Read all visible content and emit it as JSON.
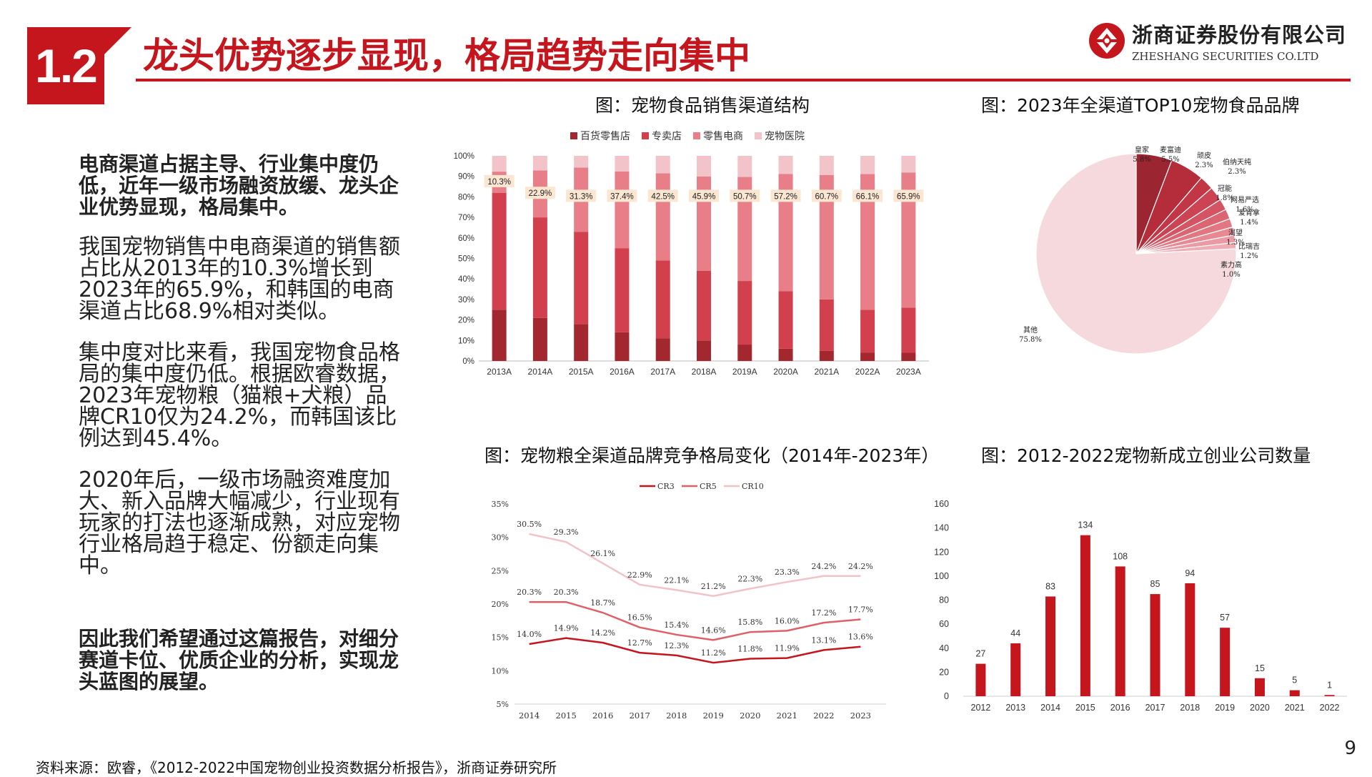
{
  "header": {
    "section": "1.2",
    "title": "龙头优势逐步显现，格局趋势走向集中",
    "brand_cn": "浙商证券股份有限公司",
    "brand_en": "ZHESHANG SECURITIES CO.LTD",
    "brand_color": "#c5161d"
  },
  "left": {
    "lead": "电商渠道占据主导、行业集中度仍低，近年一级市场融资放缓、龙头企业优势显现，格局集中。",
    "p1": "我国宠物销售中电商渠道的销售额占比从2013年的10.3%增长到2023年的65.9%，和韩国的电商渠道占比68.9%相对类似。",
    "p2": "集中度对比来看，我国宠物食品格局的集中度仍低。根据欧睿数据，2023年宠物粮（猫粮+犬粮）品牌CR10仅为24.2%，而韩国该比例达到45.4%。",
    "p3": "2020年后，一级市场融资难度加大、新入品牌大幅减少，行业现有玩家的打法也逐渐成熟，对应宠物行业格局趋于稳定、份额走向集中。",
    "tail": "因此我们希望通过这篇报告，对细分赛道卡位、优质企业的分析，实现龙头蓝图的展望。"
  },
  "captions": {
    "c1": "图：宠物食品销售渠道结构",
    "c2": "图：2023年全渠道TOP10宠物食品品牌",
    "c3": "图：宠物粮全渠道品牌竞争格局变化（2014年-2023年）",
    "c4": "图：2012-2022宠物新成立创业公司数量"
  },
  "footer": {
    "source": "资料来源：欧睿，《2012-2022中国宠物创业投资数据分析报告》，浙商证券研究所",
    "page": "9"
  },
  "chart_data": [
    {
      "type": "bar",
      "stacked": true,
      "categories": [
        "2013A",
        "2014A",
        "2015A",
        "2016A",
        "2017A",
        "2018A",
        "2019A",
        "2020A",
        "2021A",
        "2022A",
        "2023A"
      ],
      "y_ticks": [
        "0%",
        "10%",
        "20%",
        "30%",
        "40%",
        "50%",
        "60%",
        "70%",
        "80%",
        "90%",
        "100%"
      ],
      "ylim": [
        0,
        100
      ],
      "legend_position": "top",
      "series": [
        {
          "name": "百货零售店",
          "color": "#a3272f",
          "values": [
            25,
            21,
            18,
            14,
            11,
            10,
            8,
            6,
            5,
            4,
            4
          ]
        },
        {
          "name": "专卖店",
          "color": "#d2404e",
          "values": [
            57,
            49,
            45,
            41,
            38,
            34,
            31,
            28,
            25,
            21,
            22
          ]
        },
        {
          "name": "零售电商",
          "color": "#e77e88",
          "values": [
            10.3,
            22.9,
            31.3,
            37.4,
            42.5,
            45.9,
            50.7,
            57.2,
            60.7,
            66.1,
            65.9
          ]
        },
        {
          "name": "宠物医院",
          "color": "#f2c4c9",
          "values": [
            7.7,
            7.1,
            5.7,
            7.6,
            8.5,
            10.1,
            10.3,
            8.8,
            9.3,
            8.9,
            8.1
          ]
        }
      ],
      "data_labels": [
        "10.3%",
        "22.9%",
        "31.3%",
        "37.4%",
        "42.5%",
        "45.9%",
        "50.7%",
        "57.2%",
        "60.7%",
        "66.1%",
        "65.9%"
      ]
    },
    {
      "type": "pie",
      "slices": [
        {
          "name": "皇家",
          "label": "5.8%",
          "value": 5.8,
          "color": "#9b2530"
        },
        {
          "name": "麦富迪",
          "label": "5.5%",
          "value": 5.5,
          "color": "#b52d3a"
        },
        {
          "name": "顽皮",
          "label": "2.3%",
          "value": 2.3,
          "color": "#c23645"
        },
        {
          "name": "伯纳天纯",
          "label": "2.3%",
          "value": 2.3,
          "color": "#cc4454"
        },
        {
          "name": "冠能",
          "label": "1.8%",
          "value": 1.8,
          "color": "#d55463"
        },
        {
          "name": "网易严选",
          "label": "1.6%",
          "value": 1.6,
          "color": "#dc6572"
        },
        {
          "name": "爱肯拿",
          "label": "1.4%",
          "value": 1.4,
          "color": "#e27782"
        },
        {
          "name": "渴望",
          "label": "1.3%",
          "value": 1.3,
          "color": "#e78893"
        },
        {
          "name": "比瑞吉",
          "label": "1.2%",
          "value": 1.2,
          "color": "#eb9aa3"
        },
        {
          "name": "素力高",
          "label": "1.0%",
          "value": 1.0,
          "color": "#efacb3"
        },
        {
          "name": "其他",
          "label": "75.8%",
          "value": 75.8,
          "color": "#f6d9dc"
        }
      ]
    },
    {
      "type": "line",
      "x": [
        "2014",
        "2015",
        "2016",
        "2017",
        "2018",
        "2019",
        "2020",
        "2021",
        "2022",
        "2023"
      ],
      "y_ticks": [
        "5%",
        "10%",
        "15%",
        "20%",
        "25%",
        "30%",
        "35%"
      ],
      "ylim": [
        5,
        35
      ],
      "legend_position": "top",
      "series": [
        {
          "name": "CR3",
          "color": "#c5161d",
          "values": [
            14.0,
            14.9,
            14.2,
            12.7,
            12.3,
            11.2,
            11.8,
            11.9,
            13.1,
            13.6
          ],
          "labels": [
            "14.0%",
            "14.9%",
            "14.2%",
            "12.7%",
            "12.3%",
            "11.2%",
            "11.8%",
            "11.9%",
            "13.1%",
            "13.6%"
          ]
        },
        {
          "name": "CR5",
          "color": "#e06068",
          "values": [
            20.3,
            20.3,
            18.7,
            16.5,
            15.4,
            14.6,
            15.8,
            16.0,
            17.2,
            17.7
          ],
          "labels": [
            "20.3%",
            "20.3%",
            "18.7%",
            "16.5%",
            "15.4%",
            "14.6%",
            "15.8%",
            "16.0%",
            "17.2%",
            "17.7%"
          ]
        },
        {
          "name": "CR10",
          "color": "#f2c2c6",
          "values": [
            30.5,
            29.3,
            26.1,
            22.9,
            22.1,
            21.2,
            22.3,
            23.3,
            24.2,
            24.2
          ],
          "labels": [
            "30.5%",
            "29.3%",
            "26.1%",
            "22.9%",
            "22.1%",
            "21.2%",
            "22.3%",
            "23.3%",
            "24.2%",
            "24.2%"
          ]
        }
      ]
    },
    {
      "type": "bar",
      "categories": [
        "2012",
        "2013",
        "2014",
        "2015",
        "2016",
        "2017",
        "2018",
        "2019",
        "2020",
        "2021",
        "2022"
      ],
      "values": [
        27,
        44,
        83,
        134,
        108,
        85,
        94,
        57,
        15,
        5,
        1
      ],
      "y_ticks": [
        "0",
        "20",
        "40",
        "60",
        "80",
        "100",
        "120",
        "140",
        "160"
      ],
      "ylim": [
        0,
        160
      ],
      "color": "#c5161d"
    }
  ]
}
